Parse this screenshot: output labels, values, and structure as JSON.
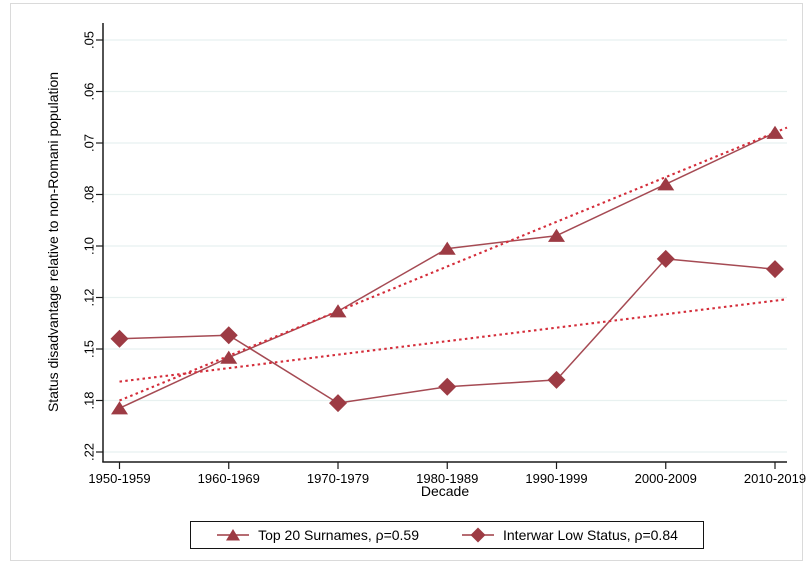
{
  "chart_data": {
    "type": "line",
    "title": "",
    "xlabel": "Decade",
    "ylabel": "Status disadvantage relative to non-Romani population",
    "categories": [
      "1950-1959",
      "1960-1969",
      "1970-1979",
      "1980-1989",
      "1990-1999",
      "2000-2009",
      "2010-2019"
    ],
    "y_ticks": [
      0.05,
      0.06,
      0.07,
      0.08,
      0.1,
      0.12,
      0.15,
      0.18,
      0.22
    ],
    "y_tick_labels": [
      ".05",
      ".06",
      ".07",
      ".08",
      ".10",
      ".12",
      ".15",
      ".18",
      ".22"
    ],
    "y_axis_reversed": true,
    "y_scale": "log-like, tick marks equally spaced",
    "grid": true,
    "legend_position": "bottom-center",
    "series": [
      {
        "name": "Top 20 Surnames, ρ=0.59",
        "marker": "triangle",
        "color": "#9d3b44",
        "values": [
          0.186,
          0.155,
          0.128,
          0.101,
          0.096,
          0.078,
          0.068
        ]
      },
      {
        "name": "Interwar Low Status, ρ=0.84",
        "marker": "diamond",
        "color": "#9d3b44",
        "values": [
          0.144,
          0.142,
          0.182,
          0.172,
          0.168,
          0.105,
          0.109
        ]
      }
    ],
    "trend_lines": [
      {
        "for_series": "Top 20 Surnames, ρ=0.59",
        "style": "dotted",
        "color": "#d42d3a",
        "start_value": 0.18,
        "end_value": 0.067
      },
      {
        "for_series": "Interwar Low Status, ρ=0.84",
        "style": "dotted",
        "color": "#d42d3a",
        "start_value": 0.169,
        "end_value": 0.121
      }
    ],
    "colors": {
      "series_maroon": "#9d3b44",
      "trend_red": "#d42d3a",
      "gridline": "#e8f1f0",
      "axis": "#1a1a1a",
      "outer_border": "#dadada"
    }
  }
}
